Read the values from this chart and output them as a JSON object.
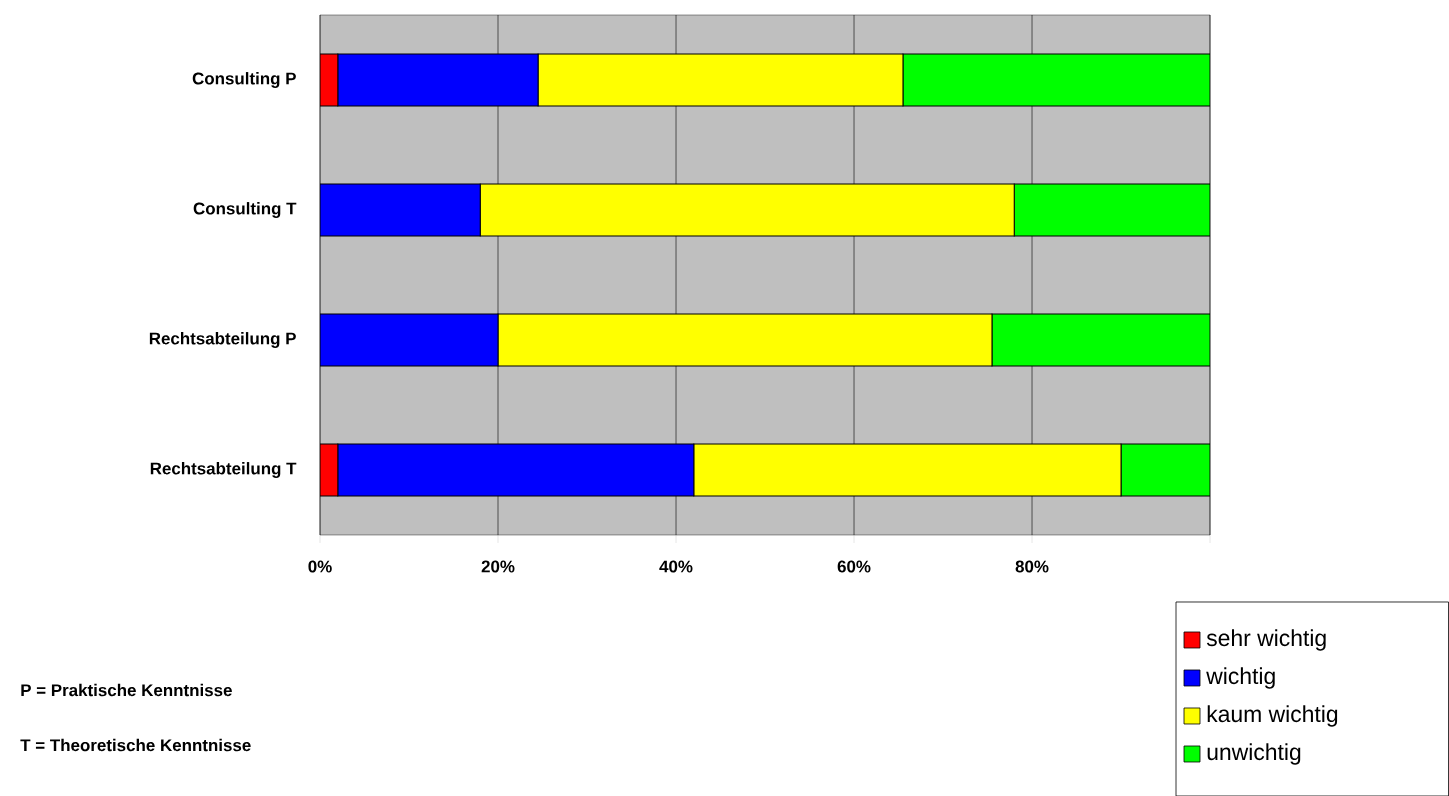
{
  "chart_data": {
    "type": "bar",
    "orientation": "horizontal",
    "stacked": true,
    "categories": [
      "Consulting P",
      "Consulting T",
      "Rechtsabteilung P",
      "Rechtsabteilung T"
    ],
    "series": [
      {
        "name": "sehr wichtig",
        "color": "#ff0000",
        "values": [
          2,
          0,
          0,
          2
        ]
      },
      {
        "name": "wichtig",
        "color": "#0000ff",
        "values": [
          22.5,
          18,
          20,
          40
        ]
      },
      {
        "name": "kaum wichtig",
        "color": "#ffff00",
        "values": [
          41,
          60,
          55.5,
          48
        ]
      },
      {
        "name": "unwichtig",
        "color": "#00ff00",
        "values": [
          34.5,
          22,
          24.5,
          10
        ]
      }
    ],
    "xlim": [
      0,
      100
    ],
    "xticks": [
      {
        "value": 0,
        "label": "0%"
      },
      {
        "value": 20,
        "label": "20%"
      },
      {
        "value": 40,
        "label": "40%"
      },
      {
        "value": 60,
        "label": "60%"
      },
      {
        "value": 80,
        "label": "80%"
      },
      {
        "value": 100,
        "label": null
      }
    ],
    "grid": "x",
    "legend": "bottom right",
    "annotations": [
      "P = Praktische Kenntnisse",
      "T = Theoretische Kenntnisse"
    ]
  }
}
